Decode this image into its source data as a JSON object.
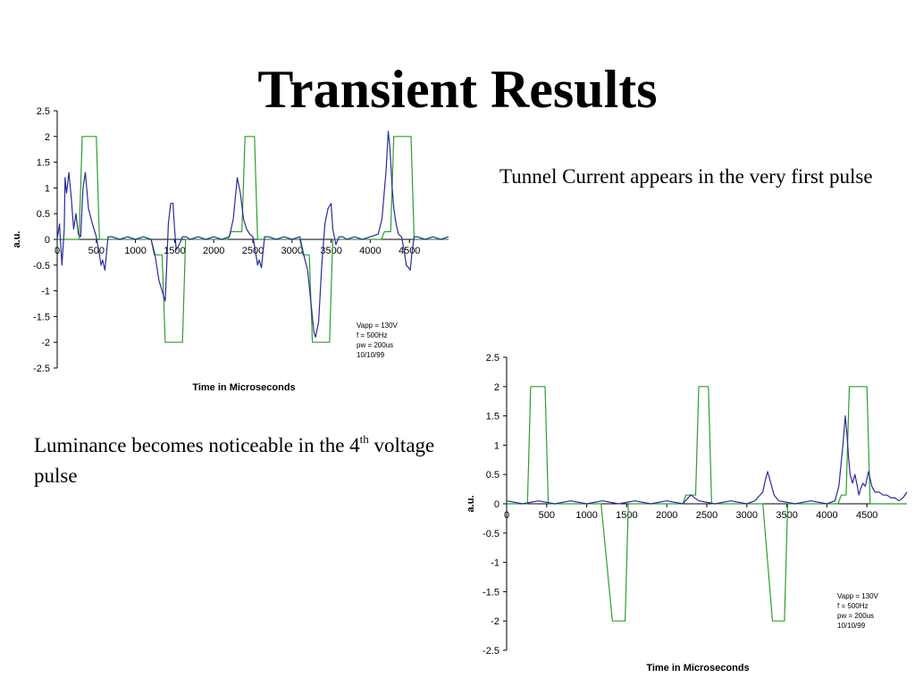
{
  "slide": {
    "title": "Transient Results",
    "note_top": "Tunnel Current appears in the very first pulse",
    "note_bottom_pre": "Luminance becomes noticeable in the 4",
    "note_bottom_sup": "th",
    "note_bottom_post": " voltage pulse"
  },
  "colors": {
    "voltage": "#2e9e2e",
    "signal": "#2b2b9b",
    "axis": "#000000"
  },
  "chart_data": [
    {
      "type": "line",
      "title": "",
      "xlabel": "Time in Microseconds",
      "ylabel": "a.u.",
      "xlim": [
        0,
        5000
      ],
      "ylim": [
        -2.5,
        2.5
      ],
      "x_ticks": [
        0,
        500,
        1000,
        1500,
        2000,
        2500,
        3000,
        3500,
        4000,
        4500
      ],
      "y_ticks": [
        2.5,
        2,
        1.5,
        1,
        0.5,
        0,
        -0.5,
        -1,
        -1.5,
        -2,
        -2.5
      ],
      "grid": false,
      "annotation": [
        "Vapp = 130V",
        "f = 500Hz",
        "pw = 200us",
        "10/10/99"
      ],
      "series": [
        {
          "color": "#2e9e2e",
          "x": [
            0,
            280,
            320,
            500,
            540,
            1200,
            1240,
            1340,
            1380,
            1600,
            1640,
            2180,
            2220,
            2360,
            2400,
            2520,
            2560,
            3100,
            3140,
            3220,
            3260,
            3480,
            3520,
            4140,
            4180,
            4260,
            4300,
            4520,
            4560,
            5000
          ],
          "y": [
            0,
            0,
            2,
            2,
            0,
            0,
            -0.3,
            -0.3,
            -2,
            -2,
            0,
            0,
            0.15,
            0.15,
            2,
            2,
            0,
            0,
            -0.3,
            -0.3,
            -2,
            -2,
            0,
            0,
            0.15,
            0.15,
            2,
            2,
            0,
            0
          ]
        },
        {
          "color": "#2b2b9b",
          "x": [
            0,
            30,
            60,
            90,
            100,
            120,
            150,
            180,
            210,
            240,
            270,
            300,
            330,
            360,
            400,
            450,
            500,
            540,
            560,
            580,
            610,
            650,
            700,
            800,
            900,
            1000,
            1100,
            1200,
            1250,
            1300,
            1340,
            1380,
            1400,
            1420,
            1450,
            1480,
            1500,
            1520,
            1560,
            1600,
            1650,
            1700,
            1800,
            1900,
            2000,
            2100,
            2200,
            2250,
            2300,
            2340,
            2380,
            2420,
            2460,
            2500,
            2530,
            2560,
            2580,
            2610,
            2650,
            2700,
            2800,
            2900,
            3000,
            3100,
            3150,
            3200,
            3240,
            3280,
            3300,
            3340,
            3380,
            3420,
            3460,
            3500,
            3520,
            3560,
            3600,
            3650,
            3700,
            3800,
            3900,
            4000,
            4100,
            4150,
            4200,
            4230,
            4250,
            4280,
            4300,
            4330,
            4360,
            4400,
            4430,
            4460,
            4490,
            4510,
            4530,
            4560,
            4600,
            4700,
            4800,
            4900,
            5000
          ],
          "y": [
            0,
            0.3,
            -0.5,
            0.2,
            1.2,
            0.9,
            1.3,
            0.8,
            0.2,
            0.5,
            0.1,
            0.05,
            1.0,
            1.3,
            0.6,
            0.3,
            0.05,
            -0.3,
            -0.5,
            -0.4,
            -0.6,
            0.05,
            0.05,
            0,
            0.05,
            0,
            0.05,
            0,
            -0.3,
            -0.8,
            -1.0,
            -1.2,
            -0.5,
            0.3,
            0.7,
            0.7,
            0.2,
            -0.2,
            -0.1,
            0.05,
            0.05,
            0,
            0.05,
            0,
            0.05,
            0,
            0.05,
            0.4,
            1.2,
            0.9,
            0.4,
            0.2,
            0.1,
            0.05,
            -0.2,
            -0.5,
            -0.4,
            -0.55,
            0.05,
            0.05,
            0,
            0.05,
            0,
            0.05,
            -0.3,
            -0.6,
            -1.2,
            -1.8,
            -1.9,
            -1.6,
            -0.5,
            0.3,
            0.6,
            0.7,
            0.2,
            -0.1,
            0.05,
            0.05,
            0,
            0.05,
            0,
            0.05,
            0.1,
            0.4,
            1.3,
            2.1,
            1.8,
            1.0,
            0.6,
            0.3,
            0.1,
            0.05,
            -0.2,
            -0.5,
            -0.55,
            -0.6,
            -0.3,
            0.05,
            0.05,
            0,
            0.05,
            0,
            0.05
          ]
        }
      ]
    },
    {
      "type": "line",
      "title": "",
      "xlabel": "Time in Microseconds",
      "ylabel": "a.u.",
      "xlim": [
        0,
        5000
      ],
      "ylim": [
        -2.5,
        2.5
      ],
      "x_ticks": [
        0,
        500,
        1000,
        1500,
        2000,
        2500,
        3000,
        3500,
        4000,
        4500
      ],
      "y_ticks": [
        2.5,
        2,
        1.5,
        1,
        0.5,
        0,
        -0.5,
        -1,
        -1.5,
        -2,
        -2.5
      ],
      "grid": false,
      "annotation": [
        "Vapp = 130V",
        "f = 500Hz",
        "pw = 200us",
        "10/10/99"
      ],
      "series": [
        {
          "color": "#2e9e2e",
          "x": [
            0,
            260,
            300,
            480,
            520,
            1180,
            1320,
            1340,
            1480,
            1520,
            2200,
            2240,
            2360,
            2400,
            2520,
            2560,
            3200,
            3320,
            3330,
            3470,
            3510,
            4140,
            4180,
            4240,
            4280,
            4500,
            4540,
            5000
          ],
          "y": [
            0,
            0,
            2,
            2,
            0,
            0,
            -2,
            -2,
            -2,
            0,
            0,
            0.15,
            0.15,
            2,
            2,
            0,
            0,
            -2,
            -2,
            -2,
            0,
            0,
            0.15,
            0.15,
            2,
            2,
            0,
            0
          ],
          "labeled": false
        },
        {
          "color": "#2b2b9b",
          "x": [
            0,
            200,
            400,
            600,
            800,
            1000,
            1200,
            1400,
            1600,
            1800,
            2000,
            2200,
            2300,
            2400,
            2600,
            2800,
            3000,
            3100,
            3200,
            3230,
            3260,
            3300,
            3340,
            3400,
            3600,
            3800,
            4000,
            4100,
            4150,
            4200,
            4230,
            4250,
            4270,
            4290,
            4320,
            4350,
            4380,
            4400,
            4420,
            4450,
            4480,
            4520,
            4560,
            4600,
            4650,
            4700,
            4750,
            4800,
            4850,
            4900,
            4950,
            5000
          ],
          "y": [
            0.05,
            0,
            0.05,
            0,
            0.05,
            0,
            0.05,
            0,
            0.05,
            0,
            0.05,
            0,
            0.15,
            0.05,
            0,
            0.05,
            0,
            0.05,
            0.2,
            0.4,
            0.55,
            0.35,
            0.15,
            0.05,
            0,
            0.05,
            0,
            0.05,
            0.3,
            1.0,
            1.5,
            1.2,
            0.8,
            0.5,
            0.35,
            0.5,
            0.3,
            0.15,
            0.25,
            0.35,
            0.3,
            0.55,
            0.3,
            0.2,
            0.2,
            0.15,
            0.15,
            0.1,
            0.1,
            0.05,
            0.1,
            0.2
          ]
        }
      ]
    }
  ]
}
